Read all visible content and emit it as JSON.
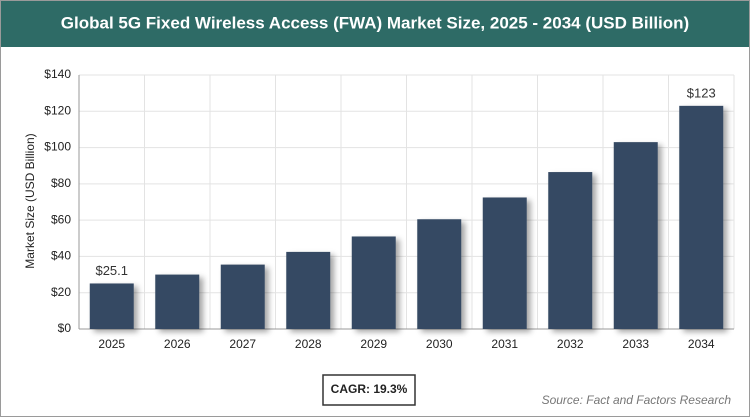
{
  "chart_data": {
    "type": "bar",
    "title": "Global 5G Fixed Wireless Access (FWA) Market Size, 2025 - 2034 (USD Billion)",
    "y_label": "Market Size (USD Billion)",
    "categories": [
      "2025",
      "2026",
      "2027",
      "2028",
      "2029",
      "2030",
      "2031",
      "2032",
      "2033",
      "2034"
    ],
    "values": [
      25.1,
      30,
      35.5,
      42.5,
      51,
      60.5,
      72.5,
      86.5,
      103,
      123
    ],
    "value_labels": [
      "$25.1",
      null,
      null,
      null,
      null,
      null,
      null,
      null,
      null,
      "$123"
    ],
    "color": "#364a63",
    "ylim": [
      0,
      140
    ],
    "yticks": [
      {
        "value": 0,
        "label": "$0"
      },
      {
        "value": 20,
        "label": "$20"
      },
      {
        "value": 40,
        "label": "$40"
      },
      {
        "value": 60,
        "label": "$60"
      },
      {
        "value": 80,
        "label": "$80"
      },
      {
        "value": 100,
        "label": "$100"
      },
      {
        "value": 120,
        "label": "$120"
      },
      {
        "value": 140,
        "label": "$140"
      }
    ],
    "grid": true,
    "annotation": "CAGR: 19.3%",
    "source": "Source: Fact and Factors Research"
  }
}
